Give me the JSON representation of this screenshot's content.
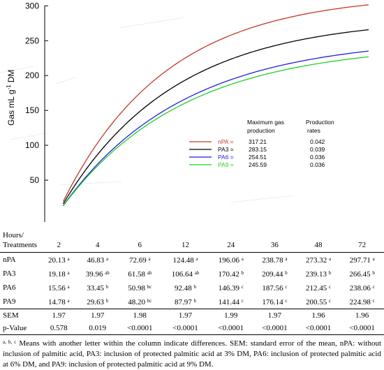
{
  "chart_data": {
    "type": "line",
    "ylabel": "Gas mL g",
    "ylabel_sup": "-1",
    "ylabel_suffix": "DM",
    "ylim": [
      0,
      300
    ],
    "xlim": [
      0,
      72
    ],
    "yticks": [
      "300",
      "250",
      "200",
      "150",
      "100",
      "50"
    ],
    "ytick_values": [
      300,
      250,
      200,
      150,
      100,
      50
    ],
    "legend_header": [
      "Maximum gas",
      "production",
      "Production",
      "rates"
    ],
    "series": [
      {
        "name": "nPA",
        "max_label": "317.21",
        "rate_label": "0.042",
        "max": 317.21,
        "rate": 0.042,
        "lag": 0.5,
        "color": "#c0392b"
      },
      {
        "name": "PA3",
        "max_label": "283.15",
        "rate_label": "0.039",
        "max": 283.15,
        "rate": 0.039,
        "lag": 0.5,
        "color": "#000000"
      },
      {
        "name": "PA6",
        "max_label": "254.51",
        "rate_label": "0.036",
        "max": 254.51,
        "rate": 0.036,
        "lag": 0.5,
        "color": "#1f1fe0"
      },
      {
        "name": "PA9",
        "max_label": "245.59",
        "rate_label": "0.036",
        "max": 245.59,
        "rate": 0.036,
        "lag": 0.5,
        "color": "#1fd11f"
      }
    ]
  },
  "table": {
    "header_label_1": "Hours/",
    "header_label_2": "Treatments",
    "hours": [
      "2",
      "4",
      "6",
      "12",
      "24",
      "36",
      "48",
      "72"
    ],
    "rows": [
      {
        "label": "nPA",
        "cells": [
          [
            "20.13",
            "a"
          ],
          [
            "46.83",
            "a"
          ],
          [
            "72.69",
            "a"
          ],
          [
            "124.48",
            "a"
          ],
          [
            "196.06",
            "a"
          ],
          [
            "238.78",
            "a"
          ],
          [
            "273.32",
            "a"
          ],
          [
            "297.71",
            "a"
          ]
        ]
      },
      {
        "label": "PA3",
        "cells": [
          [
            "19.18",
            "a"
          ],
          [
            "39.96",
            "ab"
          ],
          [
            "61.58",
            "ab"
          ],
          [
            "106.64",
            "ab"
          ],
          [
            "170.42",
            "b"
          ],
          [
            "209.44",
            "b"
          ],
          [
            "239.13",
            "b"
          ],
          [
            "266.45",
            "b"
          ]
        ]
      },
      {
        "label": "PA6",
        "cells": [
          [
            "15.56",
            "a"
          ],
          [
            "33.45",
            "b"
          ],
          [
            "50.98",
            "bc"
          ],
          [
            "92.48",
            "b"
          ],
          [
            "146.39",
            "c"
          ],
          [
            "187.56",
            "c"
          ],
          [
            "212.45",
            "c"
          ],
          [
            "238.06",
            "c"
          ]
        ]
      },
      {
        "label": "PA9",
        "cells": [
          [
            "14.78",
            "a"
          ],
          [
            "29.63",
            "b"
          ],
          [
            "48.20",
            "bc"
          ],
          [
            "87.97",
            "b"
          ],
          [
            "141.44",
            "c"
          ],
          [
            "176.14",
            "c"
          ],
          [
            "200.55",
            "c"
          ],
          [
            "224.98",
            "c"
          ]
        ]
      }
    ],
    "sem": {
      "label": "SEM",
      "cells": [
        "1.97",
        "1.97",
        "1.98",
        "1.97",
        "1.99",
        "1.97",
        "1.96",
        "1.96"
      ]
    },
    "pvalue": {
      "label": "p-Value",
      "cells": [
        "0.578",
        "0.019",
        "<0.0001",
        "<0.0001",
        "<0.0001",
        "<0.0001",
        "<0.0001",
        "<0.0001"
      ]
    }
  },
  "footnote": {
    "sup": "a, b, c",
    "text": " Means with another letter within the column indicate differences. SEM: standard error of the mean, nPA: without inclusion of palmitic acid, PA3: inclusion of protected palmitic acid at 3% DM, PA6: inclusion of protected palmitic acid at 6% DM, and PA9: inclusion of protected palmitic acid at 9% DM."
  }
}
